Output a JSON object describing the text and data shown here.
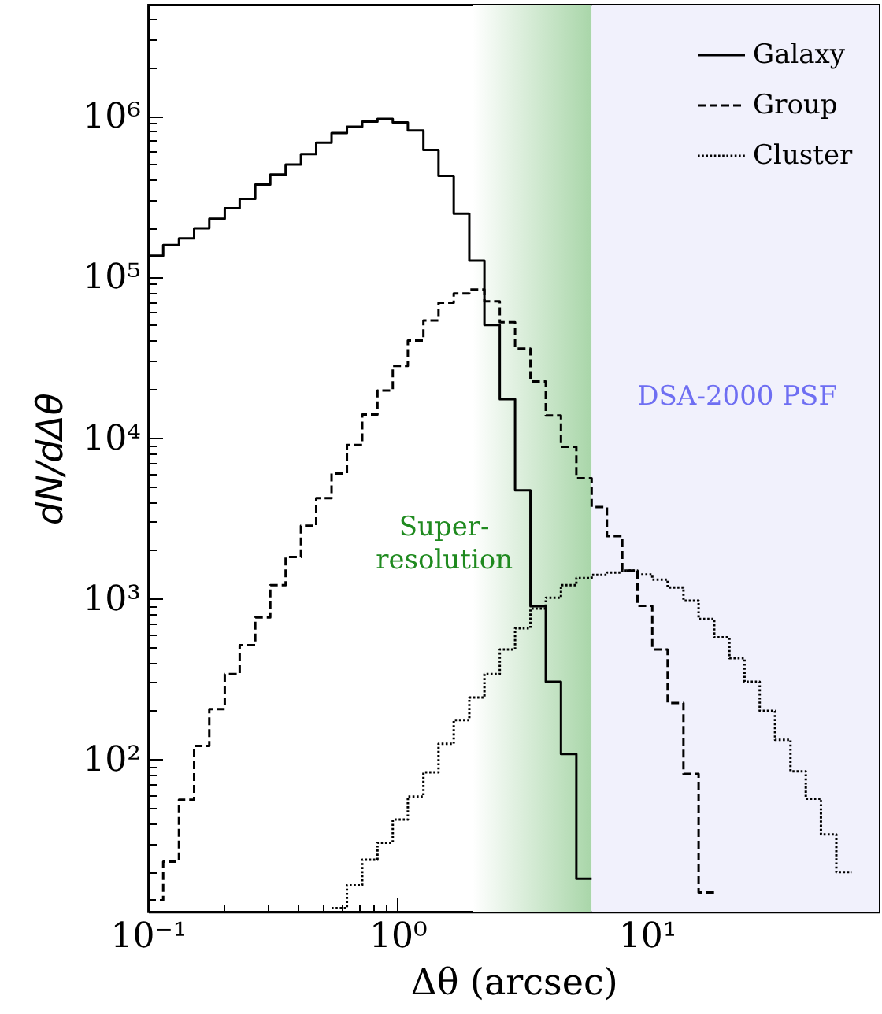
{
  "chart_data": {
    "type": "step",
    "xlabel": "Δθ (arcsec)",
    "ylabel": "dN/dΔθ",
    "log": "xy",
    "legend": "top right",
    "grid": false,
    "xlim": [
      0.1,
      85
    ],
    "ylim": [
      11.3,
      4900000
    ],
    "xticks": [
      {
        "value": 0.1,
        "label": "10⁻¹"
      },
      {
        "value": 0.2,
        "label": null
      },
      {
        "value": 0.3,
        "label": null
      },
      {
        "value": 0.4,
        "label": null
      },
      {
        "value": 0.5,
        "label": null
      },
      {
        "value": 0.6,
        "label": null
      },
      {
        "value": 0.7,
        "label": null
      },
      {
        "value": 0.8,
        "label": null
      },
      {
        "value": 0.9,
        "label": null
      },
      {
        "value": 1,
        "label": "10⁰"
      },
      {
        "value": 2,
        "label": null
      },
      {
        "value": 3,
        "label": null
      },
      {
        "value": 4,
        "label": null
      },
      {
        "value": 5,
        "label": null
      },
      {
        "value": 6,
        "label": null
      },
      {
        "value": 7,
        "label": null
      },
      {
        "value": 8,
        "label": null
      },
      {
        "value": 9,
        "label": null
      },
      {
        "value": 10,
        "label": "10¹"
      },
      {
        "value": 20,
        "label": null
      },
      {
        "value": 30,
        "label": null
      },
      {
        "value": 40,
        "label": null
      },
      {
        "value": 50,
        "label": null
      },
      {
        "value": 60,
        "label": null
      },
      {
        "value": 70,
        "label": null
      },
      {
        "value": 80,
        "label": null
      }
    ],
    "yticks": [
      {
        "value": 20,
        "label": null
      },
      {
        "value": 30,
        "label": null
      },
      {
        "value": 40,
        "label": null
      },
      {
        "value": 50,
        "label": null
      },
      {
        "value": 60,
        "label": null
      },
      {
        "value": 70,
        "label": null
      },
      {
        "value": 80,
        "label": null
      },
      {
        "value": 90,
        "label": null
      },
      {
        "value": 100,
        "label": "10²"
      },
      {
        "value": 200,
        "label": null
      },
      {
        "value": 300,
        "label": null
      },
      {
        "value": 400,
        "label": null
      },
      {
        "value": 500,
        "label": null
      },
      {
        "value": 600,
        "label": null
      },
      {
        "value": 700,
        "label": null
      },
      {
        "value": 800,
        "label": null
      },
      {
        "value": 900,
        "label": null
      },
      {
        "value": 1000,
        "label": "10³"
      },
      {
        "value": 2000,
        "label": null
      },
      {
        "value": 3000,
        "label": null
      },
      {
        "value": 4000,
        "label": null
      },
      {
        "value": 5000,
        "label": null
      },
      {
        "value": 6000,
        "label": null
      },
      {
        "value": 7000,
        "label": null
      },
      {
        "value": 8000,
        "label": null
      },
      {
        "value": 9000,
        "label": null
      },
      {
        "value": 10000,
        "label": "10⁴"
      },
      {
        "value": 20000,
        "label": null
      },
      {
        "value": 30000,
        "label": null
      },
      {
        "value": 40000,
        "label": null
      },
      {
        "value": 50000,
        "label": null
      },
      {
        "value": 60000,
        "label": null
      },
      {
        "value": 70000,
        "label": null
      },
      {
        "value": 80000,
        "label": null
      },
      {
        "value": 90000,
        "label": null
      },
      {
        "value": 100000,
        "label": "10⁵"
      },
      {
        "value": 200000,
        "label": null
      },
      {
        "value": 300000,
        "label": null
      },
      {
        "value": 400000,
        "label": null
      },
      {
        "value": 500000,
        "label": null
      },
      {
        "value": 600000,
        "label": null
      },
      {
        "value": 700000,
        "label": null
      },
      {
        "value": 800000,
        "label": null
      },
      {
        "value": 900000,
        "label": null
      },
      {
        "value": 1000000,
        "label": "10⁶"
      },
      {
        "value": 2000000,
        "label": null
      },
      {
        "value": 3000000,
        "label": null
      },
      {
        "value": 4000000,
        "label": null
      }
    ],
    "bands": [
      {
        "axis": "x",
        "from": 2,
        "to": 6,
        "label": "Super-\nresolution",
        "color": "#a9d6a9"
      },
      {
        "axis": "x",
        "from": 6,
        "to": 85,
        "label": "DSA-2000 PSF",
        "color": "#f1f1fc"
      }
    ],
    "series": [
      {
        "name": "Galaxy",
        "color": "#000000",
        "line_style": "solid",
        "x": [
          0.1,
          0.115,
          0.133,
          0.153,
          0.176,
          0.203,
          0.233,
          0.269,
          0.309,
          0.356,
          0.41,
          0.472,
          0.544,
          0.627,
          0.722,
          0.831,
          0.957,
          1.1,
          1.27,
          1.46,
          1.68,
          1.94,
          2.23,
          2.57,
          2.96,
          3.41,
          3.93,
          4.52,
          5.21,
          6
        ],
        "values": [
          135000,
          157000,
          173000,
          200000,
          229000,
          266000,
          305000,
          373000,
          431000,
          497000,
          578000,
          681000,
          780000,
          854000,
          920000,
          956000,
          908000,
          811000,
          613000,
          422000,
          247000,
          126000,
          50100,
          17300,
          4700,
          894,
          303,
          108,
          18.1,
          18.1
        ]
      },
      {
        "name": "Group",
        "color": "#000000",
        "line_style": "dashed",
        "x": [
          0.1,
          0.115,
          0.133,
          0.153,
          0.176,
          0.203,
          0.233,
          0.269,
          0.309,
          0.356,
          0.41,
          0.472,
          0.544,
          0.627,
          0.722,
          0.831,
          0.957,
          1.1,
          1.27,
          1.46,
          1.68,
          1.94,
          2.23,
          2.57,
          2.96,
          3.41,
          3.93,
          4.52,
          5.21,
          6,
          6.91,
          7.96,
          9.16,
          10.5,
          12.1,
          14,
          16.1,
          18.6
        ],
        "values": [
          13.3,
          23.1,
          56.1,
          121,
          205,
          339,
          512,
          762,
          1210,
          1810,
          2830,
          4200,
          5980,
          8980,
          13900,
          19600,
          27900,
          40100,
          53400,
          68800,
          78700,
          83100,
          70300,
          52100,
          35700,
          22300,
          13700,
          8770,
          5590,
          3700,
          2440,
          1490,
          899,
          482,
          224,
          81.1,
          14.9,
          14.9
        ]
      },
      {
        "name": "Cluster",
        "color": "#000000",
        "line_style": "dotted",
        "x": [
          0.544,
          0.627,
          0.722,
          0.831,
          0.957,
          1.1,
          1.27,
          1.46,
          1.68,
          1.94,
          2.23,
          2.57,
          2.96,
          3.41,
          3.93,
          4.52,
          5.21,
          6,
          6.91,
          7.96,
          9.16,
          10.5,
          12.1,
          14,
          16.1,
          18.6,
          21.4,
          24.6,
          28.3,
          32.6,
          37.6,
          43.3,
          49.8,
          57.4,
          66.1
        ],
        "values": [
          11.9,
          16.5,
          23.8,
          30.3,
          42.2,
          58.7,
          83,
          125,
          175,
          242,
          339,
          482,
          652,
          865,
          1010,
          1210,
          1340,
          1400,
          1450,
          1490,
          1410,
          1310,
          1170,
          969,
          746,
          573,
          425,
          303,
          200,
          132,
          84.3,
          57,
          34.2,
          19.9,
          19.9
        ]
      }
    ]
  }
}
